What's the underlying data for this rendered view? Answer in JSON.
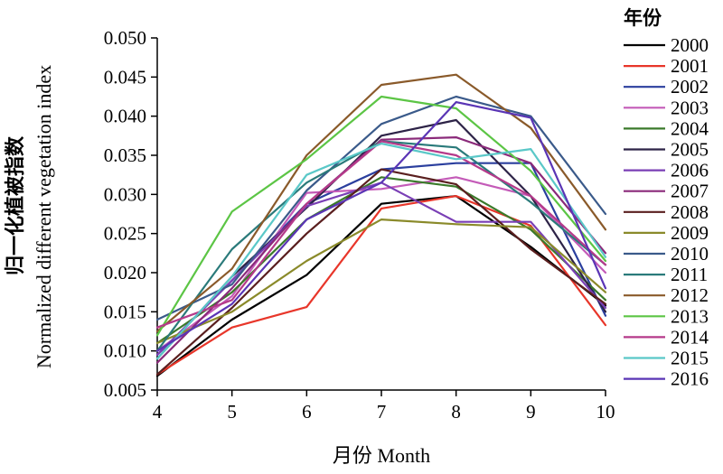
{
  "chart_data": {
    "type": "line",
    "xlabel": "月份 Month",
    "ylabel_cn": "归一化植被指数",
    "ylabel_en": "Normalized different vegetation index",
    "legend_title": "年份",
    "legend_placement": "right",
    "grid": false,
    "x": [
      4,
      5,
      6,
      7,
      8,
      9,
      10
    ],
    "xlim": [
      4,
      10
    ],
    "ylim": [
      0.005,
      0.05
    ],
    "yticks": [
      "0.005",
      "0.010",
      "0.015",
      "0.020",
      "0.025",
      "0.030",
      "0.035",
      "0.040",
      "0.045",
      "0.050"
    ],
    "yticks_values": [
      0.005,
      0.01,
      0.015,
      0.02,
      0.025,
      0.03,
      0.035,
      0.04,
      0.045,
      0.05
    ],
    "xticks": [
      "4",
      "5",
      "6",
      "7",
      "8",
      "9",
      "10"
    ],
    "series": [
      {
        "name": "2000",
        "color": "#000000",
        "values": [
          0.0068,
          0.014,
          0.0197,
          0.0288,
          0.0298,
          0.0233,
          0.0158
        ]
      },
      {
        "name": "2001",
        "color": "#e8362a",
        "values": [
          0.007,
          0.013,
          0.0156,
          0.0282,
          0.0298,
          0.026,
          0.0133
        ]
      },
      {
        "name": "2002",
        "color": "#2b3f9e",
        "values": [
          0.0095,
          0.019,
          0.0288,
          0.0332,
          0.034,
          0.034,
          0.0145
        ]
      },
      {
        "name": "2003",
        "color": "#c45bb8",
        "values": [
          0.01,
          0.017,
          0.0302,
          0.0307,
          0.0322,
          0.0298,
          0.02
        ]
      },
      {
        "name": "2004",
        "color": "#3a7a2a",
        "values": [
          0.011,
          0.0175,
          0.0268,
          0.0322,
          0.031,
          0.0255,
          0.0165
        ]
      },
      {
        "name": "2005",
        "color": "#2d2347",
        "values": [
          0.009,
          0.0195,
          0.0283,
          0.0375,
          0.0395,
          0.0298,
          0.015
        ]
      },
      {
        "name": "2006",
        "color": "#7a3fb5",
        "values": [
          0.0095,
          0.019,
          0.0285,
          0.0315,
          0.0265,
          0.0265,
          0.0155
        ]
      },
      {
        "name": "2007",
        "color": "#8a2a7a",
        "values": [
          0.0085,
          0.018,
          0.0288,
          0.037,
          0.0373,
          0.034,
          0.0225
        ]
      },
      {
        "name": "2008",
        "color": "#5a1f1f",
        "values": [
          0.007,
          0.0155,
          0.025,
          0.0332,
          0.0313,
          0.023,
          0.016
        ]
      },
      {
        "name": "2009",
        "color": "#8a8a2a",
        "values": [
          0.011,
          0.015,
          0.0215,
          0.0268,
          0.0262,
          0.0258,
          0.0175
        ]
      },
      {
        "name": "2010",
        "color": "#3a5a8a",
        "values": [
          0.014,
          0.0185,
          0.0305,
          0.039,
          0.0425,
          0.04,
          0.0275
        ]
      },
      {
        "name": "2011",
        "color": "#2a7a7a",
        "values": [
          0.01,
          0.023,
          0.0315,
          0.0368,
          0.036,
          0.029,
          0.021
        ]
      },
      {
        "name": "2012",
        "color": "#8a5a2a",
        "values": [
          0.0125,
          0.0205,
          0.035,
          0.044,
          0.0453,
          0.0385,
          0.0255
        ]
      },
      {
        "name": "2013",
        "color": "#5cc545",
        "values": [
          0.012,
          0.0278,
          0.0345,
          0.0425,
          0.041,
          0.033,
          0.0215
        ]
      },
      {
        "name": "2014",
        "color": "#b53a8a",
        "values": [
          0.013,
          0.0165,
          0.0288,
          0.0368,
          0.035,
          0.0298,
          0.021
        ]
      },
      {
        "name": "2015",
        "color": "#5ac8c8",
        "values": [
          0.009,
          0.0195,
          0.0325,
          0.0365,
          0.0345,
          0.0358,
          0.022
        ]
      },
      {
        "name": "2016",
        "color": "#5a35b5",
        "values": [
          0.01,
          0.016,
          0.0268,
          0.0315,
          0.0418,
          0.0398,
          0.018
        ]
      }
    ]
  }
}
